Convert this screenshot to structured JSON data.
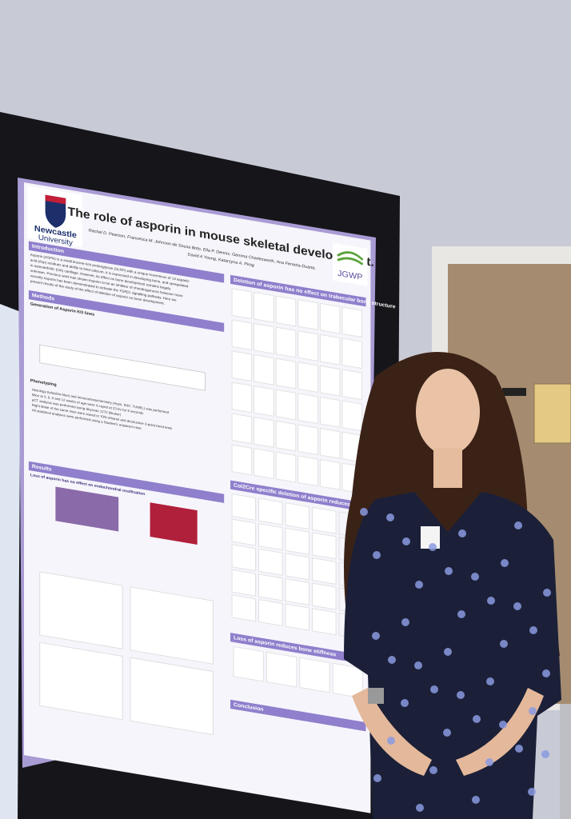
{
  "poster": {
    "logo": {
      "name": "Newcastle",
      "sub": "University"
    },
    "title": "The role of asporin in mouse skeletal development.",
    "authors": "Rachel D. Pearson, Francesca M. Johnson de Sousa Brito, Ella P. Dennis, Gemma Charlesworth, Ana Ferreira-Duarte,",
    "authors2": "David A Young, Katarzyna A. Piróg",
    "logo2": "JGWP",
    "sections": {
      "introduction": "Introduction",
      "methods": "Methods",
      "generation": "Generation of Asporin KO lines",
      "phenotyping": "Phenotyping",
      "results": "Results",
      "results_sub": "Loss of asporin has no effect on endochondral ossification",
      "trabecular": "Deletion of asporin has no effect on trabecular bone structure",
      "cortical": "Col2Cre specific deletion of asporin reduces cortical bone strength",
      "stiffness": "Loss of asporin reduces bone stiffness",
      "conclusion": "Conclusion"
    },
    "intro": [
      "Asporin (ASPN) is a small leucine-rich proteoglycan (SLRP) with a unique N-terminus of 13 aspartic",
      "acid (Asp) residues and ability to bind calcium. It is expressed in developing bone, and upregulated",
      "in osteoarthritic (OA) cartilage. However, its effect on bone development remains largely",
      "unknown. Previous work has shown Asporin to be an inhibitor of chondrogenesis however more",
      "recently Asporin has been demonstrated to activate the TGFβ1 signalling pathway. Here we",
      "present results of the study of the effect of deletion of asporin on bone development."
    ],
    "phenotyping": [
      "Histology (toluidine blue) and immunohistochemistry (Aspn, Ki67, TUNEL) was performed",
      "Mice at 3, 6, 9 and 12 weeks of age were X-rayed at 23 kV for 5 seconds",
      "µCT analysis was performed using Skyscan 1272 (Bruker)",
      "Right tibiae of the same mice were stored in 70% ethanol and destructive 3-point bend tests",
      "All statistical analyses were performed using a Student's unpaired t-test."
    ]
  }
}
